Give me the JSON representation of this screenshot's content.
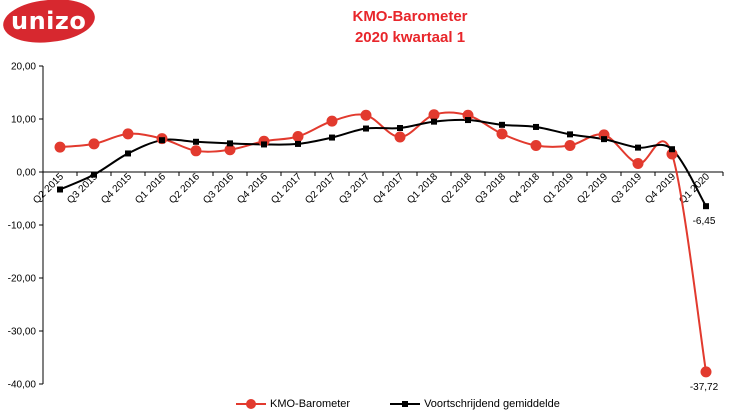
{
  "logo": {
    "text": "unizo",
    "color": "#d7282f"
  },
  "chart_data": {
    "type": "line",
    "title": "KMO-Barometer",
    "subtitle": "2020 kwartaal 1",
    "categories": [
      "Q2 2015",
      "Q3 2015",
      "Q4 2015",
      "Q1 2016",
      "Q2 2016",
      "Q3 2016",
      "Q4 2016",
      "Q1 2017",
      "Q2 2017",
      "Q3 2017",
      "Q4 2017",
      "Q1 2018",
      "Q2 2018",
      "Q3 2018",
      "Q4 2018",
      "Q1 2019",
      "Q2 2019",
      "Q3 2019",
      "Q4 2019",
      "Q1 2020"
    ],
    "ylim": [
      -40,
      20
    ],
    "yticks": [
      20,
      10,
      0,
      -10,
      -20,
      -30,
      -40
    ],
    "ytick_labels": [
      "20,00",
      "10,00",
      "0,00",
      "-10,00",
      "-20,00",
      "-30,00",
      "-40,00"
    ],
    "series": [
      {
        "name": "KMO-Barometer",
        "color": "#e23a2e",
        "marker": "circle",
        "values": [
          4.7,
          5.3,
          7.2,
          6.3,
          4.0,
          4.2,
          5.8,
          6.7,
          9.6,
          10.7,
          6.6,
          10.8,
          10.7,
          7.2,
          5.0,
          5.0,
          7.0,
          1.6,
          3.4,
          -37.72
        ]
      },
      {
        "name": "Voortschrijdend gemiddelde",
        "color": "#000000",
        "marker": "square",
        "values": [
          -3.3,
          -0.5,
          3.5,
          6.0,
          5.7,
          5.4,
          5.2,
          5.3,
          6.5,
          8.2,
          8.3,
          9.5,
          9.8,
          8.9,
          8.5,
          7.1,
          6.2,
          4.6,
          4.3,
          -6.45
        ]
      }
    ],
    "annotations": [
      {
        "series": "Voortschrijdend gemiddelde",
        "category": "Q1 2020",
        "text": "-6,45"
      },
      {
        "series": "KMO-Barometer",
        "category": "Q1 2020",
        "text": "-37,72"
      }
    ],
    "legend_position": "bottom"
  }
}
